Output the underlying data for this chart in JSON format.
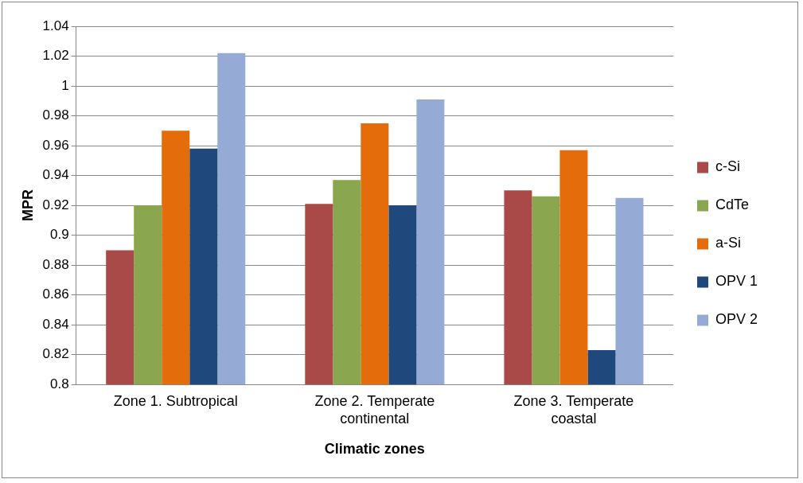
{
  "chart_data": {
    "type": "bar",
    "xlabel": "Climatic zones",
    "ylabel": "MPR",
    "categories": [
      "Zone 1. Subtropical",
      "Zone 2. Temperate continental",
      "Zone 3. Temperate coastal"
    ],
    "series": [
      {
        "name": "c-Si",
        "color": "#a94a48",
        "values": [
          0.89,
          0.921,
          0.93
        ]
      },
      {
        "name": "CdTe",
        "color": "#8aa64f",
        "values": [
          0.92,
          0.937,
          0.926
        ]
      },
      {
        "name": "a-Si",
        "color": "#e46c0a",
        "values": [
          0.97,
          0.975,
          0.957
        ]
      },
      {
        "name": "OPV 1",
        "color": "#1f497d",
        "values": [
          0.958,
          0.92,
          0.823
        ]
      },
      {
        "name": "OPV 2",
        "color": "#95abd5",
        "values": [
          1.022,
          0.991,
          0.925
        ]
      }
    ],
    "ylim": [
      0.8,
      1.04
    ],
    "yticks": [
      0.8,
      0.82,
      0.84,
      0.86,
      0.88,
      0.9,
      0.92,
      0.94,
      0.96,
      0.98,
      1,
      1.02,
      1.04
    ],
    "grid": "y",
    "legend": "right"
  }
}
